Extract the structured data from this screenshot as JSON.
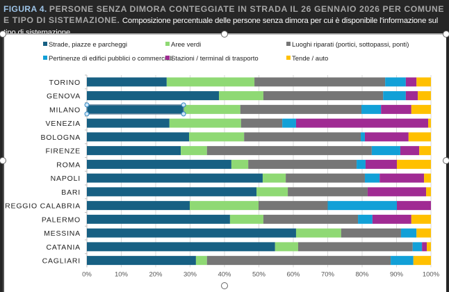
{
  "header": {
    "figure_label": "FIGURA 4.",
    "title": "PERSONE SENZA DIMORA CONTEGGIATE IN STRADA IL 26 GENNAIO 2026 PER COMUNE E TIPO DI SISTEMAZIONE.",
    "subtitle": "Composizione percentuale delle persone senza dimora per cui è disponibile l'informazione sul tipo di sistemazione."
  },
  "chart_data": {
    "type": "bar",
    "orientation": "horizontal",
    "stacked": "percent",
    "categories": [
      "TORINO",
      "GENOVA",
      "MILANO",
      "VENEZIA",
      "BOLOGNA",
      "FIRENZE",
      "ROMA",
      "NAPOLI",
      "BARI",
      "REGGIO CALABRIA",
      "PALERMO",
      "MESSINA",
      "CATANIA",
      "CAGLIARI"
    ],
    "series": [
      {
        "name": "Strade, piazze e parcheggi",
        "color": "#176083",
        "values": [
          23.2,
          38.4,
          28.1,
          24.0,
          29.7,
          27.3,
          42.0,
          51.1,
          49.3,
          29.9,
          41.6,
          60.8,
          54.7,
          31.7
        ]
      },
      {
        "name": "Aree verdi",
        "color": "#8fd974",
        "values": [
          25.5,
          12.9,
          16.5,
          20.8,
          16.0,
          7.6,
          4.9,
          6.7,
          9.1,
          20.0,
          9.7,
          13.1,
          6.7,
          3.2
        ]
      },
      {
        "name": "Luoghi riparati (portici, sottopassi, ponti)",
        "color": "#767676",
        "values": [
          38.0,
          34.8,
          35.2,
          12.0,
          33.9,
          47.9,
          31.5,
          23.0,
          23.2,
          20.1,
          27.5,
          17.4,
          33.3,
          53.4
        ]
      },
      {
        "name": "Pertinenze di edifici pubblici o commerciali",
        "color": "#12a0d7",
        "values": [
          6.0,
          6.6,
          5.7,
          4.0,
          1.2,
          8.3,
          2.6,
          4.3,
          0,
          20.1,
          4.2,
          4.5,
          2.7,
          6.6
        ]
      },
      {
        "name": "Stazioni / terminal di trasporto",
        "color": "#a02b93",
        "values": [
          3.1,
          3.5,
          8.8,
          38.4,
          12.7,
          5.5,
          9.1,
          12.9,
          17.0,
          9.9,
          11.3,
          0,
          1.4,
          0
        ]
      },
      {
        "name": "Tende / auto",
        "color": "#ffc000",
        "values": [
          4.2,
          3.8,
          5.7,
          0.8,
          6.5,
          3.4,
          9.9,
          2.0,
          1.4,
          0,
          5.7,
          4.2,
          1.2,
          5.1
        ]
      }
    ],
    "xlim": [
      0,
      100
    ],
    "xticks": [
      "0%",
      "10%",
      "20%",
      "30%",
      "40%",
      "50%",
      "60%",
      "70%",
      "80%",
      "90%",
      "100%"
    ],
    "grid": true,
    "legend_position": "top",
    "selected_category": "MILANO"
  }
}
